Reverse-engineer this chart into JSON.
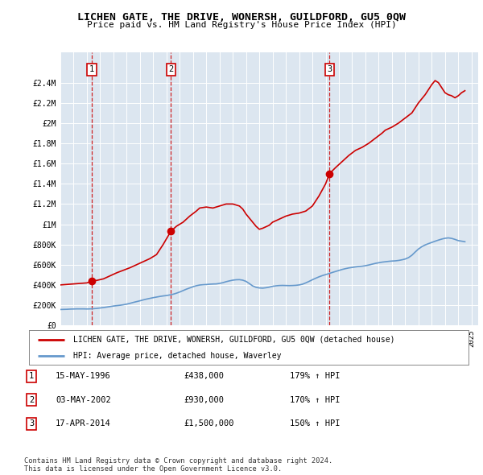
{
  "title": "LICHEN GATE, THE DRIVE, WONERSH, GUILDFORD, GU5 0QW",
  "subtitle": "Price paid vs. HM Land Registry's House Price Index (HPI)",
  "background_color": "#ffffff",
  "plot_bg_color": "#dce6f0",
  "grid_color": "#ffffff",
  "ylim": [
    0,
    2700000
  ],
  "yticks": [
    0,
    200000,
    400000,
    600000,
    800000,
    1000000,
    1200000,
    1400000,
    1600000,
    1800000,
    2000000,
    2200000,
    2400000
  ],
  "ytick_labels": [
    "£0",
    "£200K",
    "£400K",
    "£600K",
    "£800K",
    "£1M",
    "£1.2M",
    "£1.4M",
    "£1.6M",
    "£1.8M",
    "£2M",
    "£2.2M",
    "£2.4M"
  ],
  "xlim_start": 1994.0,
  "xlim_end": 2025.5,
  "sale_color": "#cc0000",
  "hpi_color": "#6699cc",
  "sale_points": [
    {
      "year": 1996.37,
      "price": 438000
    },
    {
      "year": 2002.33,
      "price": 930000
    },
    {
      "year": 2014.29,
      "price": 1500000
    }
  ],
  "sale_labels": [
    "1",
    "2",
    "3"
  ],
  "legend_sale_label": "LICHEN GATE, THE DRIVE, WONERSH, GUILDFORD, GU5 0QW (detached house)",
  "legend_hpi_label": "HPI: Average price, detached house, Waverley",
  "table_data": [
    {
      "num": "1",
      "date": "15-MAY-1996",
      "price": "£438,000",
      "change": "179% ↑ HPI"
    },
    {
      "num": "2",
      "date": "03-MAY-2002",
      "price": "£930,000",
      "change": "170% ↑ HPI"
    },
    {
      "num": "3",
      "date": "17-APR-2014",
      "price": "£1,500,000",
      "change": "150% ↑ HPI"
    }
  ],
  "footer": "Contains HM Land Registry data © Crown copyright and database right 2024.\nThis data is licensed under the Open Government Licence v3.0.",
  "hpi_data_x": [
    1994,
    1994.25,
    1994.5,
    1994.75,
    1995,
    1995.25,
    1995.5,
    1995.75,
    1996,
    1996.25,
    1996.5,
    1996.75,
    1997,
    1997.25,
    1997.5,
    1997.75,
    1998,
    1998.25,
    1998.5,
    1998.75,
    1999,
    1999.25,
    1999.5,
    1999.75,
    2000,
    2000.25,
    2000.5,
    2000.75,
    2001,
    2001.25,
    2001.5,
    2001.75,
    2002,
    2002.25,
    2002.5,
    2002.75,
    2003,
    2003.25,
    2003.5,
    2003.75,
    2004,
    2004.25,
    2004.5,
    2004.75,
    2005,
    2005.25,
    2005.5,
    2005.75,
    2006,
    2006.25,
    2006.5,
    2006.75,
    2007,
    2007.25,
    2007.5,
    2007.75,
    2008,
    2008.25,
    2008.5,
    2008.75,
    2009,
    2009.25,
    2009.5,
    2009.75,
    2010,
    2010.25,
    2010.5,
    2010.75,
    2011,
    2011.25,
    2011.5,
    2011.75,
    2012,
    2012.25,
    2012.5,
    2012.75,
    2013,
    2013.25,
    2013.5,
    2013.75,
    2014,
    2014.25,
    2014.5,
    2014.75,
    2015,
    2015.25,
    2015.5,
    2015.75,
    2016,
    2016.25,
    2016.5,
    2016.75,
    2017,
    2017.25,
    2017.5,
    2017.75,
    2018,
    2018.25,
    2018.5,
    2018.75,
    2019,
    2019.25,
    2019.5,
    2019.75,
    2020,
    2020.25,
    2020.5,
    2020.75,
    2021,
    2021.25,
    2021.5,
    2021.75,
    2022,
    2022.25,
    2022.5,
    2022.75,
    2023,
    2023.25,
    2023.5,
    2023.75,
    2024,
    2024.5
  ],
  "hpi_data_y": [
    157000,
    158000,
    159000,
    161000,
    162000,
    163000,
    163000,
    163000,
    162000,
    163000,
    165000,
    168000,
    172000,
    176000,
    181000,
    186000,
    191000,
    195000,
    199000,
    204000,
    210000,
    218000,
    227000,
    235000,
    243000,
    252000,
    260000,
    267000,
    274000,
    280000,
    286000,
    291000,
    295000,
    301000,
    308000,
    318000,
    330000,
    344000,
    358000,
    370000,
    382000,
    392000,
    399000,
    402000,
    404000,
    407000,
    409000,
    410000,
    415000,
    422000,
    432000,
    440000,
    447000,
    451000,
    452000,
    447000,
    435000,
    413000,
    390000,
    376000,
    370000,
    368000,
    372000,
    378000,
    386000,
    391000,
    394000,
    395000,
    394000,
    393000,
    394000,
    396000,
    400000,
    407000,
    420000,
    435000,
    451000,
    466000,
    480000,
    492000,
    502000,
    512000,
    523000,
    533000,
    543000,
    553000,
    561000,
    568000,
    573000,
    578000,
    582000,
    585000,
    590000,
    597000,
    605000,
    613000,
    619000,
    625000,
    629000,
    633000,
    636000,
    638000,
    642000,
    648000,
    656000,
    670000,
    693000,
    725000,
    755000,
    778000,
    795000,
    808000,
    820000,
    832000,
    843000,
    853000,
    861000,
    865000,
    860000,
    850000,
    838000,
    827000
  ],
  "sale_line_x": [
    1994,
    1994.5,
    1995,
    1995.5,
    1996,
    1996.37,
    1996.75,
    1997.25,
    1997.75,
    1998.25,
    1998.75,
    1999.25,
    1999.75,
    2000.25,
    2000.75,
    2001.25,
    2001.75,
    2002.33,
    2002.75,
    2003.25,
    2003.75,
    2004.25,
    2004.5,
    2005,
    2005.5,
    2006,
    2006.5,
    2007,
    2007.25,
    2007.5,
    2007.75,
    2008,
    2008.25,
    2008.75,
    2009,
    2009.25,
    2009.75,
    2010,
    2010.5,
    2011,
    2011.5,
    2012,
    2012.5,
    2013,
    2013.5,
    2014,
    2014.29,
    2014.75,
    2015.25,
    2015.75,
    2016.25,
    2016.75,
    2017.25,
    2017.75,
    2018.25,
    2018.5,
    2019,
    2019.5,
    2020,
    2020.5,
    2021,
    2021.5,
    2022,
    2022.25,
    2022.5,
    2022.75,
    2023,
    2023.25,
    2023.5,
    2023.75,
    2024,
    2024.25,
    2024.5
  ],
  "sale_line_y": [
    400000,
    405000,
    410000,
    415000,
    420000,
    438000,
    445000,
    460000,
    490000,
    520000,
    545000,
    570000,
    600000,
    630000,
    660000,
    700000,
    800000,
    930000,
    980000,
    1020000,
    1080000,
    1130000,
    1160000,
    1170000,
    1160000,
    1180000,
    1200000,
    1200000,
    1190000,
    1180000,
    1150000,
    1100000,
    1060000,
    980000,
    950000,
    960000,
    990000,
    1020000,
    1050000,
    1080000,
    1100000,
    1110000,
    1130000,
    1180000,
    1280000,
    1400000,
    1500000,
    1560000,
    1620000,
    1680000,
    1730000,
    1760000,
    1800000,
    1850000,
    1900000,
    1930000,
    1960000,
    2000000,
    2050000,
    2100000,
    2200000,
    2280000,
    2380000,
    2420000,
    2400000,
    2350000,
    2300000,
    2280000,
    2270000,
    2250000,
    2270000,
    2300000,
    2320000
  ]
}
